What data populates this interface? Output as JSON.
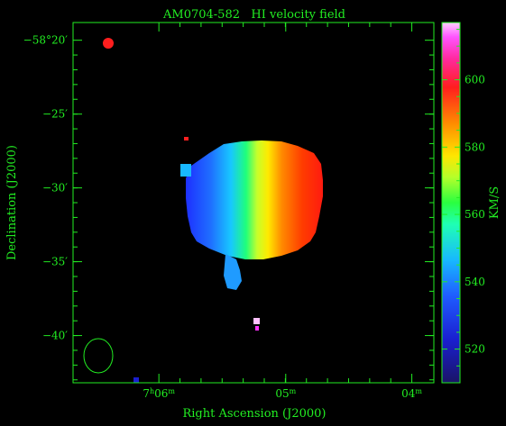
{
  "chart_data": {
    "type": "heatmap",
    "title": "AM0704-582   HI velocity field",
    "xlabel": "Right Ascension (J2000)",
    "ylabel": "Declination (J2000)",
    "colorbar_label": "KM/S",
    "colorbar_ticks": [
      "520",
      "540",
      "560",
      "580",
      "600"
    ],
    "colorbar_tick_values": [
      520,
      540,
      560,
      580,
      600
    ],
    "colorbar_range": [
      510,
      617
    ],
    "x_ticks": [
      {
        "value": 7.1,
        "h": "7",
        "m": "06"
      },
      {
        "value": 7.0833,
        "h": "",
        "m": "05"
      },
      {
        "value": 7.0667,
        "h": "",
        "m": "04"
      }
    ],
    "y_ticks": [
      "−58°20′",
      "−25′",
      "−30′",
      "−35′",
      "−40′"
    ],
    "y_tick_values": [
      -58.3333,
      -58.4167,
      -58.5,
      -58.5833,
      -58.6667
    ],
    "y_range": [
      -58.72,
      -58.3133
    ],
    "x_range": [
      7.1113,
      7.0638
    ],
    "velocity_gradient": {
      "east_edge_kms": 532,
      "west_edge_kms": 598,
      "center_ra": 7.0893,
      "center_dec": -58.5067
    },
    "colors": {
      "axis": "#22ee22",
      "background": "#000000"
    }
  }
}
